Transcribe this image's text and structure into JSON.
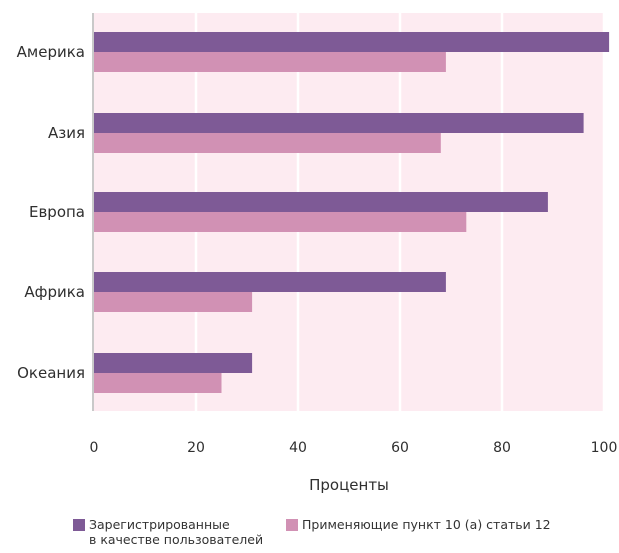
{
  "chart_data": {
    "type": "bar",
    "orientation": "horizontal",
    "categories": [
      "Америка",
      "Азия",
      "Европа",
      "Африка",
      "Океания"
    ],
    "series": [
      {
        "name": "Зарегистрированные\nв качестве пользователей",
        "color": "#7e5a96",
        "values": [
          101,
          96,
          89,
          69,
          31
        ]
      },
      {
        "name": "Применяющие пункт 10 (a) статьи 12",
        "color": "#d191b4",
        "values": [
          69,
          68,
          73,
          31,
          25
        ]
      }
    ],
    "xlabel": "Проценты",
    "ylabel": "",
    "xlim": [
      0,
      100
    ],
    "xticks": [
      "0",
      "20",
      "40",
      "60",
      "80",
      "100"
    ],
    "grid": true,
    "plot_background": "#fdebf1",
    "legend_position": "bottom"
  }
}
